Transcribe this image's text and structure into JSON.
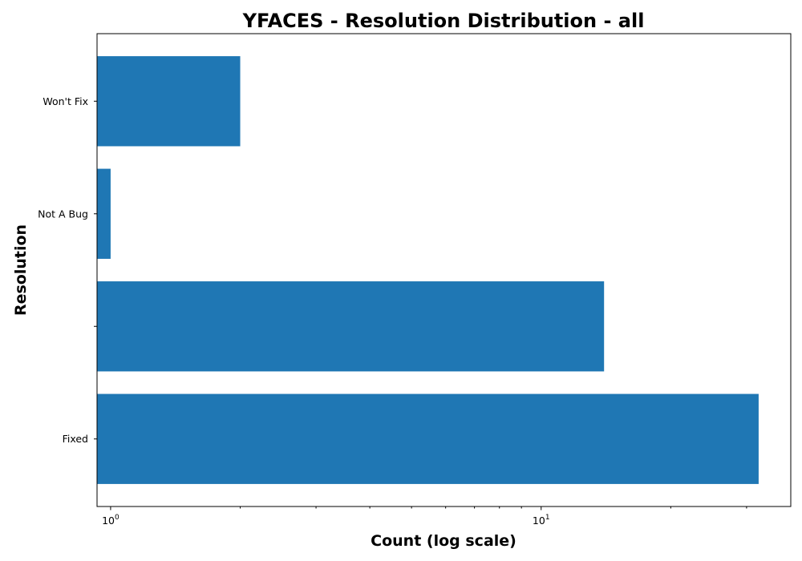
{
  "chart_data": {
    "type": "bar",
    "orientation": "horizontal",
    "title": "YFACES - Resolution Distribution - all",
    "xlabel": "Count (log scale)",
    "ylabel": "Resolution",
    "x_scale": "log",
    "xlim": [
      0.93,
      38
    ],
    "x_ticks": [
      {
        "base": "10",
        "exp": "0",
        "value": 1
      },
      {
        "base": "10",
        "exp": "1",
        "value": 10
      }
    ],
    "categories": [
      "Fixed",
      "",
      "Not A Bug",
      "Won't Fix"
    ],
    "values": [
      32,
      14,
      1,
      2
    ],
    "bar_color": "#1f77b4",
    "grid": false,
    "legend": false
  }
}
